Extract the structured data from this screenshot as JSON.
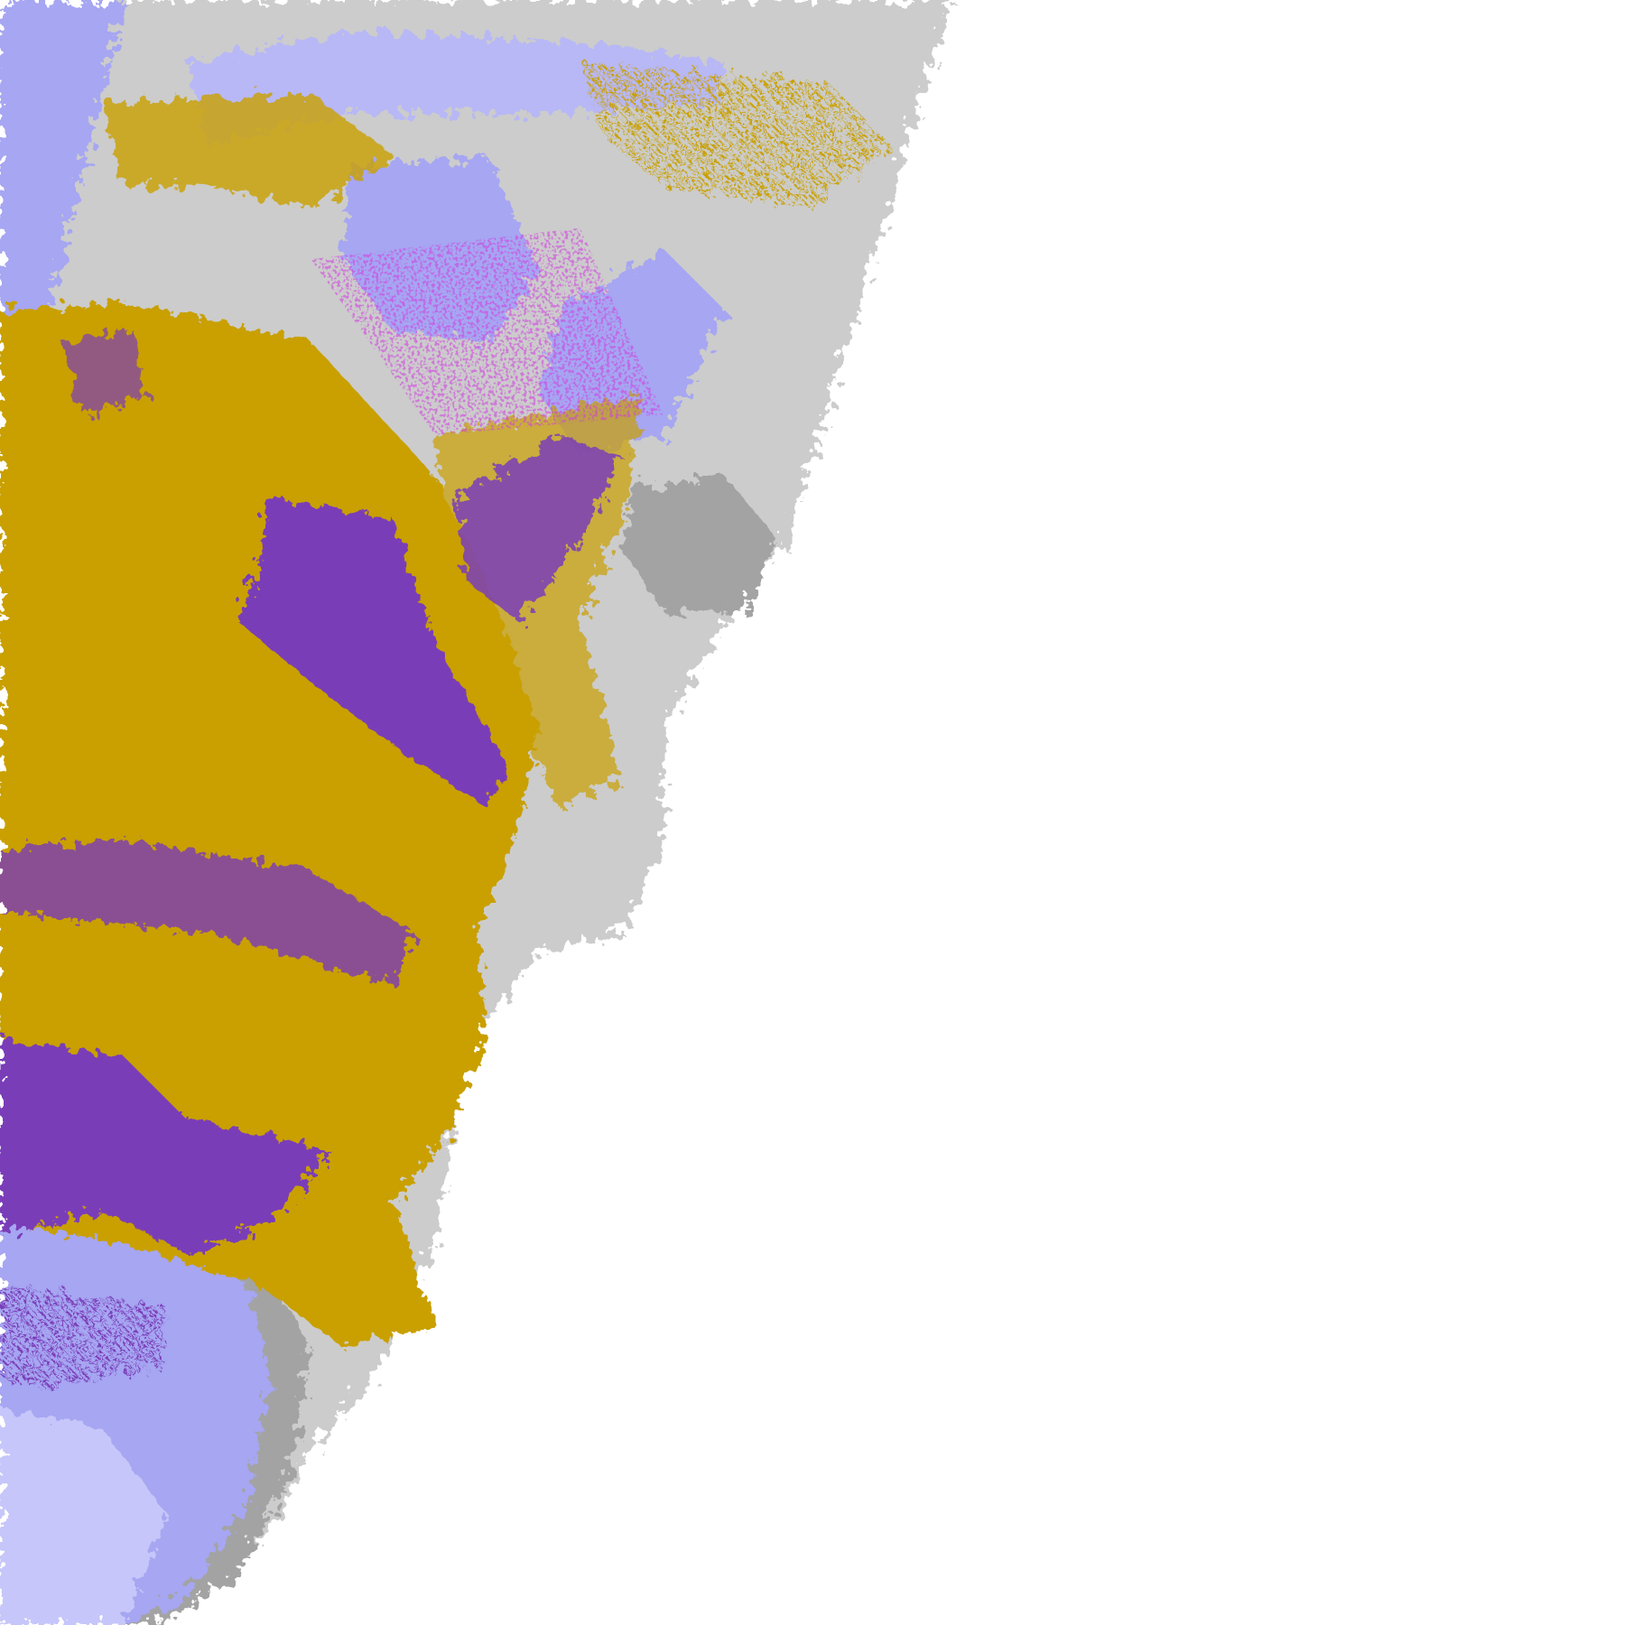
{
  "colors": {
    "background": "#ffffff",
    "gold": "#c9a004",
    "purple": "#7a3cb8",
    "lavender": "#a6a6f2",
    "pale_lavender": "#c6c6fa",
    "gray": "#a3a3a3",
    "magenta": "#d040e0"
  }
}
